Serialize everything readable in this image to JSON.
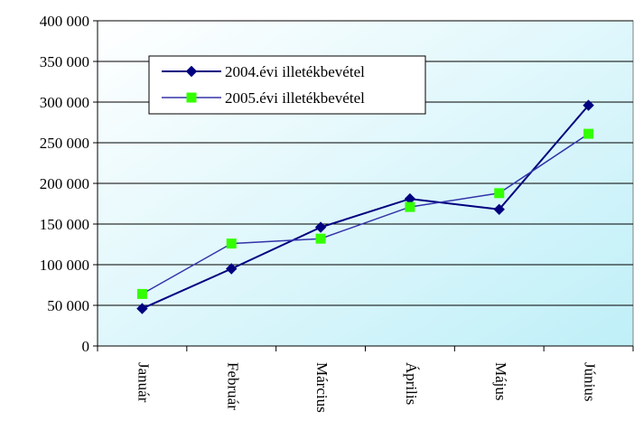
{
  "chart_data": {
    "type": "line",
    "categories": [
      "Január",
      "Február",
      "Március",
      "Április",
      "Május",
      "Június"
    ],
    "series": [
      {
        "name": "2004.évi illetékbevétel",
        "values": [
          46000,
          95000,
          146000,
          181000,
          168000,
          296000
        ],
        "color": "#000080",
        "marker": "diamond"
      },
      {
        "name": "2005.évi illetékbevétel",
        "values": [
          64000,
          126000,
          132000,
          171000,
          188000,
          261000
        ],
        "color": "#3333aa",
        "marker_color": "#33ff00",
        "marker": "square"
      }
    ],
    "ylim": [
      0,
      400000
    ],
    "yticks": [
      "0",
      "50 000",
      "100 000",
      "150 000",
      "200 000",
      "250 000",
      "300 000",
      "350 000",
      "400 000"
    ],
    "ytick_values": [
      0,
      50000,
      100000,
      150000,
      200000,
      250000,
      300000,
      350000,
      400000
    ],
    "grid": true,
    "legend_position": "top-left",
    "plot_background": "gradient light cyan",
    "title": "",
    "xlabel": "",
    "ylabel": ""
  }
}
